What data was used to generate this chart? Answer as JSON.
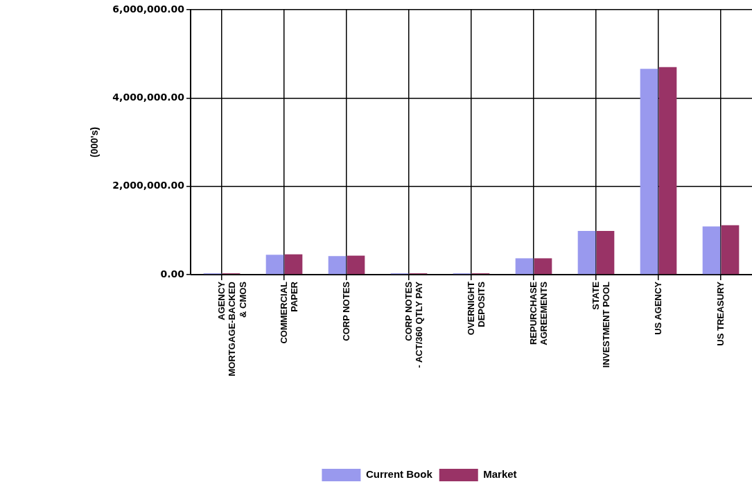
{
  "chart_data": {
    "type": "bar",
    "ylabel": "(000's)",
    "categories": [
      "AGENCY MORTGAGE-BACKED & CMOS",
      "COMMERCIAL PAPER",
      "CORP NOTES",
      "CORP NOTES - ACT/360 QTLY PAY",
      "OVERNIGHT DEPOSITS",
      "REPURCHASE AGREEMENTS",
      "STATE INVESTMENT POOL",
      "US AGENCY",
      "US TREASURY"
    ],
    "series": [
      {
        "name": "Current Book",
        "color": "#9999ee",
        "values": [
          30000,
          450000,
          420000,
          30000,
          30000,
          370000,
          990000,
          4660000,
          1090000
        ]
      },
      {
        "name": "Market",
        "color": "#993366",
        "values": [
          30000,
          460000,
          430000,
          30000,
          30000,
          370000,
          990000,
          4700000,
          1120000
        ]
      }
    ],
    "ylim": [
      0,
      6000000
    ],
    "yticks": [
      {
        "value": 0,
        "label": "0.00"
      },
      {
        "value": 2000000,
        "label": "2,000,000.00"
      },
      {
        "value": 4000000,
        "label": "4,000,000.00"
      },
      {
        "value": 6000000,
        "label": "6,000,000.00"
      }
    ],
    "grid": true,
    "legend": "bottom"
  }
}
